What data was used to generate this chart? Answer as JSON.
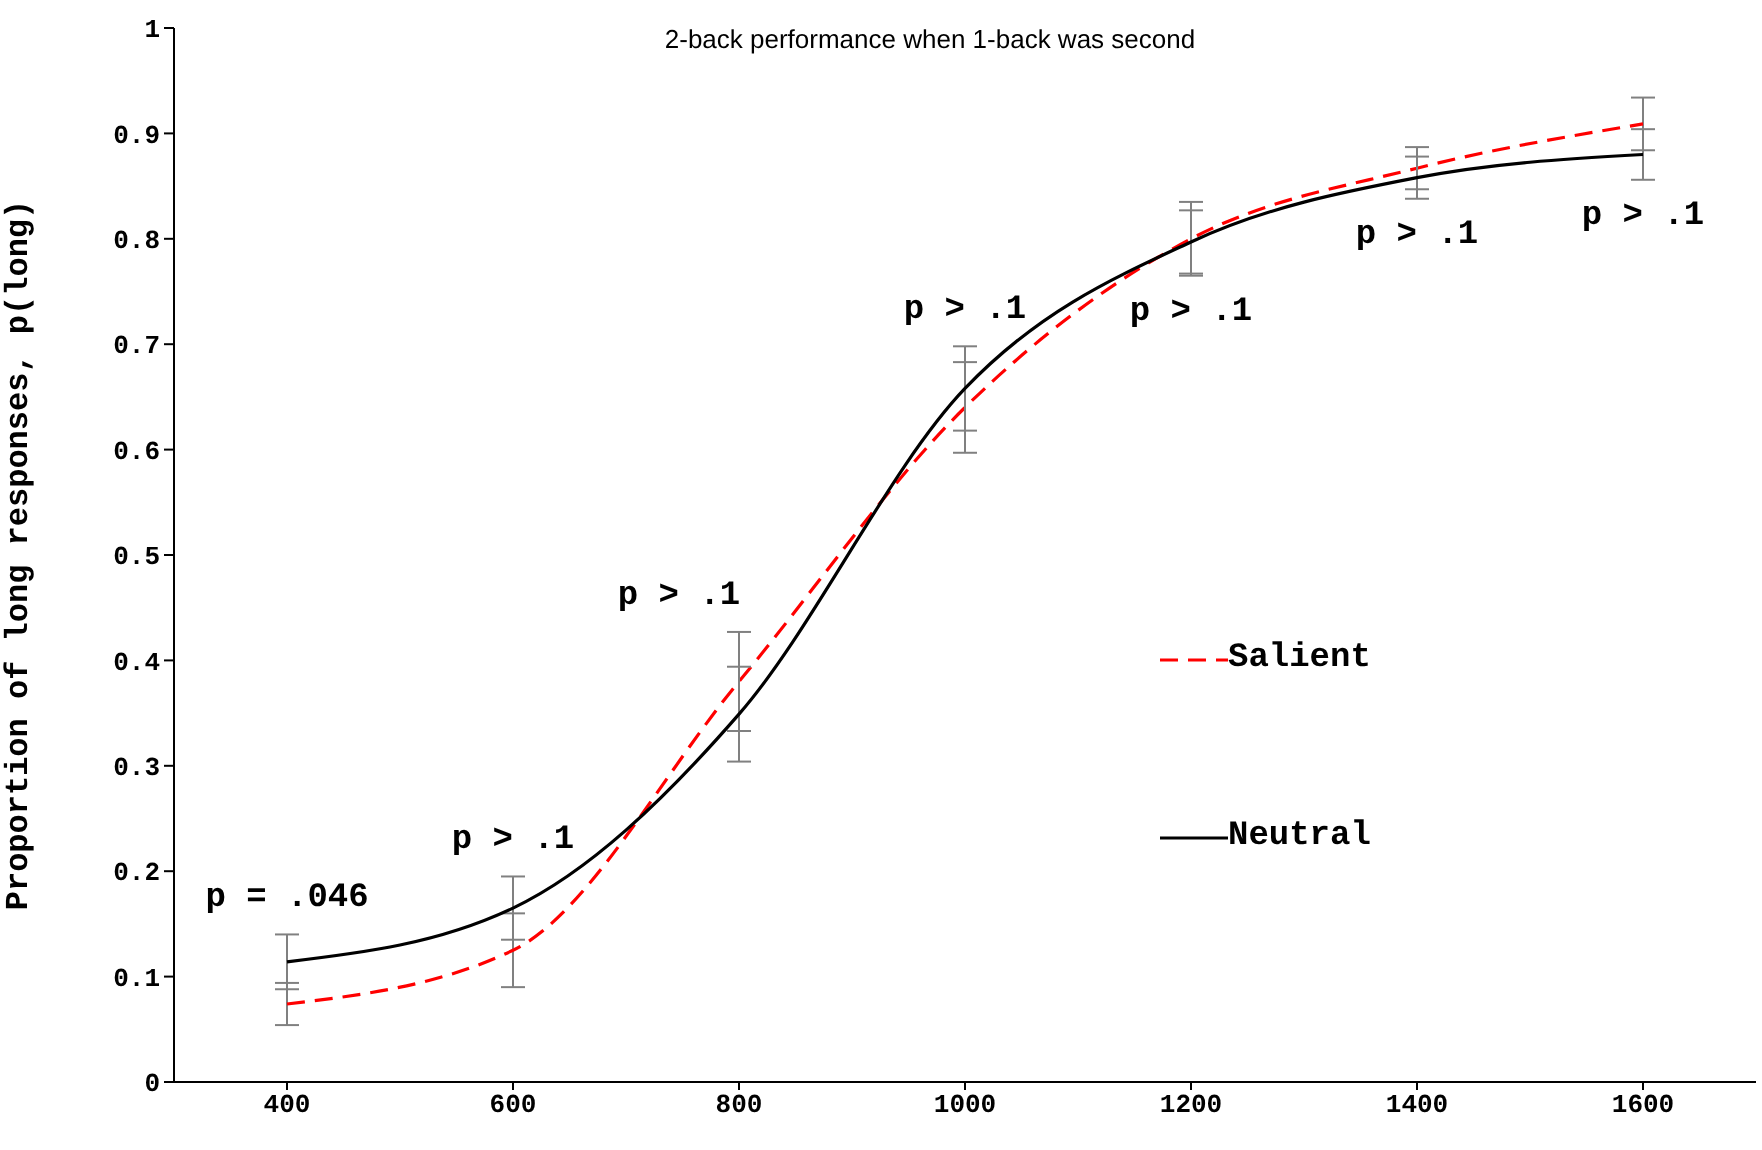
{
  "chart_data": {
    "type": "line",
    "title": "2-back performance when 1-back was second",
    "ylabel": "Proportion of long responses, p(long)",
    "x": [
      400,
      600,
      800,
      1000,
      1200,
      1400,
      1600
    ],
    "series": [
      {
        "name": "Salient",
        "color": "#ff0000",
        "line_style": "dashed",
        "values": [
          0.074,
          0.125,
          0.38,
          0.64,
          0.8,
          0.867,
          0.909
        ],
        "errors": [
          0.02,
          0.035,
          0.047,
          0.043,
          0.035,
          0.02,
          0.025
        ]
      },
      {
        "name": "Neutral",
        "color": "#000000",
        "line_style": "solid",
        "values": [
          0.114,
          0.165,
          0.349,
          0.658,
          0.797,
          0.858,
          0.88
        ],
        "errors": [
          0.026,
          0.03,
          0.045,
          0.04,
          0.03,
          0.02,
          0.024
        ]
      }
    ],
    "xlim": [
      300,
      1700
    ],
    "xticks": [
      400,
      600,
      800,
      1000,
      1200,
      1400,
      1600
    ],
    "ylim": [
      0,
      1
    ],
    "yticks": [
      0,
      0.1,
      0.2,
      0.3,
      0.4,
      0.5,
      0.6,
      0.7,
      0.8,
      0.9,
      1
    ],
    "grid": false,
    "legend": "right",
    "marker": "none",
    "annotations": [
      "p = .046",
      "p > .1",
      "p > .1",
      "p > .1",
      "p > .1",
      "p > .1",
      "p > .1"
    ]
  }
}
